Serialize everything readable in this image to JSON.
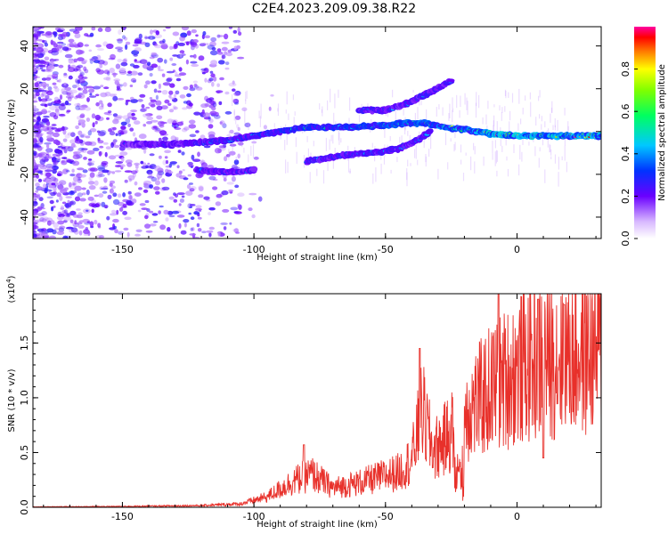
{
  "title": "C2E4.2023.209.09.38.R22",
  "colors": {
    "snr_line": "#e8302a",
    "frame": "#000000"
  },
  "chart_data": [
    {
      "type": "heatmap",
      "xlabel": "Height of straight line (km)",
      "ylabel": "Frequency (Hz)",
      "xlim": [
        -184,
        32
      ],
      "ylim": [
        -50,
        49
      ],
      "x_ticks": [
        -150,
        -100,
        -50,
        0
      ],
      "y_ticks": [
        -40,
        -20,
        0,
        20,
        40
      ],
      "colorbar": {
        "label": "Normalized spectral amplitude",
        "range": [
          0,
          1
        ],
        "ticks": [
          "0.0",
          "0.2",
          "0.4",
          "0.6",
          "0.8"
        ],
        "scale": "rainbow"
      },
      "features": [
        {
          "name": "main trace",
          "x": [
            -150,
            -130,
            -110,
            -95,
            -80,
            -65,
            -50,
            -42,
            -35,
            -28,
            -20,
            -10,
            0,
            10,
            32
          ],
          "y": [
            -6,
            -6,
            -4,
            -1,
            2,
            2,
            3,
            4,
            4,
            2,
            1,
            -1,
            -2,
            -2,
            -2
          ]
        },
        {
          "name": "lower branch",
          "x": [
            -80,
            -65,
            -55,
            -45,
            -38,
            -33
          ],
          "y": [
            -14,
            -11,
            -10,
            -8,
            -4,
            0
          ]
        },
        {
          "name": "upper branch",
          "x": [
            -60,
            -50,
            -42,
            -32,
            -25
          ],
          "y": [
            10,
            10,
            13,
            19,
            24
          ]
        },
        {
          "name": "low fragment",
          "x": [
            -122,
            -110,
            -100
          ],
          "y": [
            -18,
            -19,
            -18
          ]
        }
      ]
    },
    {
      "type": "line",
      "xlabel": "Height of straight line (km)",
      "ylabel": "SNR (10 * v/v)",
      "scale_note": "(x10",
      "scale_exponent": "4",
      "scale_close": ")",
      "xlim": [
        -184,
        32
      ],
      "ylim": [
        0,
        1.95
      ],
      "x_ticks": [
        -150,
        -100,
        -50,
        0
      ],
      "y_ticks": [
        0.0,
        0.5,
        1.0,
        1.5
      ],
      "envelope": {
        "x": [
          -184,
          -150,
          -120,
          -105,
          -95,
          -85,
          -78,
          -70,
          -60,
          -50,
          -45,
          -40,
          -36,
          -32,
          -28,
          -24,
          -20,
          -15,
          -10,
          -5,
          0,
          5,
          10,
          20,
          32
        ],
        "y": [
          0.005,
          0.01,
          0.02,
          0.04,
          0.12,
          0.3,
          0.38,
          0.22,
          0.28,
          0.36,
          0.4,
          0.55,
          1.1,
          0.65,
          0.75,
          0.9,
          1.1,
          1.2,
          1.35,
          1.45,
          1.55,
          1.65,
          1.7,
          1.75,
          1.8
        ]
      },
      "peaks": [
        {
          "x": -37,
          "y": 1.45
        },
        {
          "x": -81,
          "y": 0.57
        },
        {
          "x": -7,
          "y": 1.95
        },
        {
          "x": 8,
          "y": 1.9
        },
        {
          "x": 10,
          "y": 0.45
        },
        {
          "x": 18,
          "y": 1.85
        }
      ]
    }
  ]
}
